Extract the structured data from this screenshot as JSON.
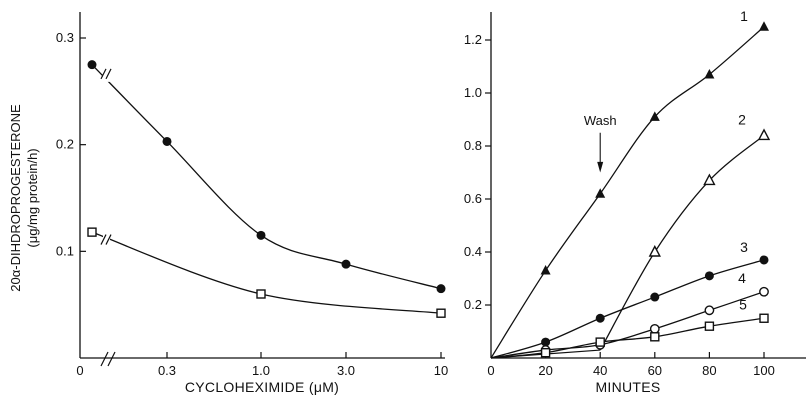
{
  "chart_data": [
    {
      "type": "line",
      "ylabel_line1": "20α-DIHDROPROGESTERONE",
      "ylabel_line2": "(μg/mg protein/h)",
      "xlabel": "CYCLOHEXIMIDE (μM)",
      "x_scale": "log with axis break",
      "x_ticks": [
        "0",
        "0.3",
        "1.0",
        "3.0",
        "10"
      ],
      "y_ticks": [
        "0.1",
        "0.2",
        "0.3"
      ],
      "ylim": [
        0,
        0.32
      ],
      "series": [
        {
          "marker": "filled-circle",
          "x": [
            "0",
            "0.3",
            "1.0",
            "3.0",
            "10"
          ],
          "values": [
            0.275,
            0.203,
            0.115,
            0.088,
            0.065
          ]
        },
        {
          "marker": "open-square",
          "x": [
            "0",
            "1.0",
            "10"
          ],
          "values": [
            0.118,
            0.06,
            0.042
          ]
        }
      ]
    },
    {
      "type": "line",
      "xlabel": "MINUTES",
      "x_ticks": [
        "0",
        "20",
        "40",
        "60",
        "80",
        "100"
      ],
      "y_ticks": [
        "0.2",
        "0.4",
        "0.6",
        "0.8",
        "1.0",
        "1.2"
      ],
      "xlim": [
        0,
        110
      ],
      "ylim": [
        0,
        1.32
      ],
      "annotation": "Wash",
      "annotation_x": 40,
      "series": [
        {
          "label": "1",
          "marker": "filled-triangle",
          "x": [
            20,
            40,
            60,
            80,
            100
          ],
          "values": [
            0.33,
            0.62,
            0.91,
            1.07,
            1.25
          ]
        },
        {
          "label": "2",
          "marker": "open-triangle",
          "x": [
            60,
            80,
            100
          ],
          "values": [
            0.4,
            0.67,
            0.84
          ]
        },
        {
          "label": "3",
          "marker": "filled-circle",
          "x": [
            20,
            40,
            60,
            80,
            100
          ],
          "values": [
            0.06,
            0.15,
            0.23,
            0.31,
            0.37
          ]
        },
        {
          "label": "4",
          "marker": "open-circle",
          "x": [
            20,
            40,
            60,
            80,
            100
          ],
          "values": [
            0.03,
            0.05,
            0.11,
            0.18,
            0.25
          ]
        },
        {
          "label": "5",
          "marker": "open-square",
          "x": [
            20,
            40,
            60,
            80,
            100
          ],
          "values": [
            0.02,
            0.06,
            0.08,
            0.12,
            0.15
          ]
        }
      ]
    }
  ]
}
